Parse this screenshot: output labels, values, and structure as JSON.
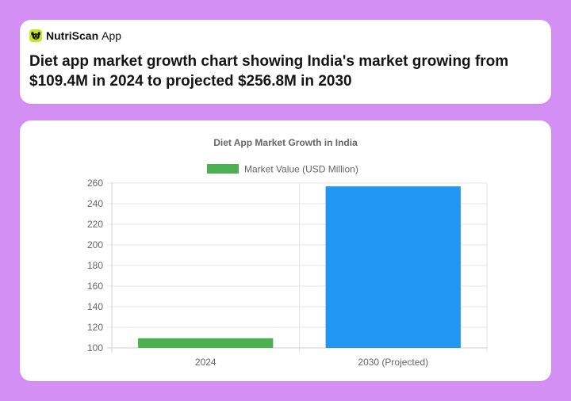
{
  "brand": {
    "name": "NutriScan",
    "suffix": "App",
    "logo_icon": "dog-face-icon",
    "logo_color": "#c8e61e"
  },
  "headline": "Diet app market growth chart showing India's market growing from $109.4M in 2024 to projected $256.8M in 2030",
  "chart_data": {
    "type": "bar",
    "title": "Diet App Market Growth in India",
    "categories": [
      "2024",
      "2030 (Projected)"
    ],
    "series": [
      {
        "name": "Market Value (USD Million)",
        "values": [
          109.4,
          256.8
        ],
        "colors": [
          "#4caf50",
          "#2196f3"
        ],
        "legend_color": "#4caf50"
      }
    ],
    "ylim": [
      100,
      260
    ],
    "yticks": [
      100,
      120,
      140,
      160,
      180,
      200,
      220,
      240,
      260
    ],
    "legend_position": "top",
    "grid": true,
    "xlabel": "",
    "ylabel": ""
  }
}
